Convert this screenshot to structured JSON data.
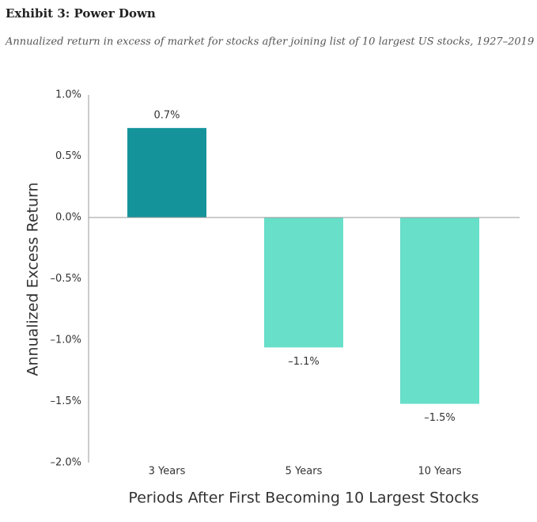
{
  "chart_data": {
    "type": "bar",
    "title": "Exhibit 3: Power Down",
    "subtitle": "Annualized return in excess of market for stocks after joining list of 10 largest US stocks, 1927–2019",
    "categories": [
      "3 Years",
      "5 Years",
      "10 Years"
    ],
    "values": [
      0.73,
      -1.06,
      -1.52
    ],
    "value_labels": [
      "0.7%",
      "–1.1%",
      "–1.5%"
    ],
    "colors": [
      "#15939a",
      "#68dfc9",
      "#68dfc9"
    ],
    "y_label": "Annualized Excess Return",
    "x_label": "Periods After First Becoming 10 Largest Stocks",
    "ylim": [
      -2.0,
      1.0
    ],
    "yticks": [
      {
        "value": 1.0,
        "label": "1.0%"
      },
      {
        "value": 0.5,
        "label": "0.5%"
      },
      {
        "value": 0.0,
        "label": "0.0%"
      },
      {
        "value": -0.5,
        "label": "–0.5%"
      },
      {
        "value": -1.0,
        "label": "–1.0%"
      },
      {
        "value": -1.5,
        "label": "–1.5%"
      },
      {
        "value": -2.0,
        "label": "–2.0%"
      }
    ],
    "grid": false
  }
}
